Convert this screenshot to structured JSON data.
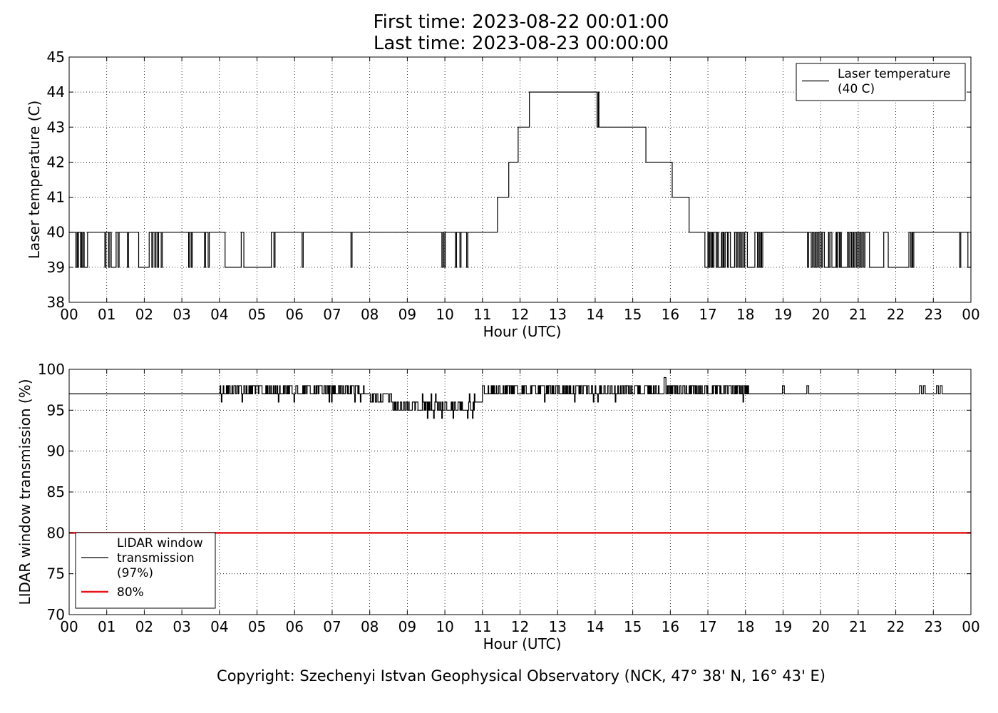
{
  "header": {
    "first_time": "First time: 2023-08-22 00:01:00",
    "last_time": "Last time: 2023-08-23 00:00:00"
  },
  "footer": {
    "copyright": "Copyright: Szechenyi Istvan Geophysical Observatory (NCK, 47° 38' N, 16° 43' E)"
  },
  "chart_data": [
    {
      "type": "line",
      "xlabel": "Hour (UTC)",
      "ylabel": "Laser temperature (C)",
      "xlim": [
        0,
        24
      ],
      "ylim": [
        38,
        45
      ],
      "xticks": [
        0,
        1,
        2,
        3,
        4,
        5,
        6,
        7,
        8,
        9,
        10,
        11,
        12,
        13,
        14,
        15,
        16,
        17,
        18,
        19,
        20,
        21,
        22,
        23,
        24
      ],
      "xtick_labels": [
        "00",
        "01",
        "02",
        "03",
        "04",
        "05",
        "06",
        "07",
        "08",
        "09",
        "10",
        "11",
        "12",
        "13",
        "14",
        "15",
        "16",
        "17",
        "18",
        "19",
        "20",
        "21",
        "22",
        "23",
        "00"
      ],
      "yticks": [
        38,
        39,
        40,
        41,
        42,
        43,
        44,
        45
      ],
      "grid": true,
      "legend_position": "top-right",
      "series": [
        {
          "name_lines": [
            "Laser temperature",
            "(40 C)"
          ],
          "color": "#000000",
          "base": 40,
          "steps": [
            [
              11.4,
              41
            ],
            [
              11.7,
              42
            ],
            [
              11.95,
              43
            ],
            [
              12.25,
              44
            ],
            [
              14.05,
              43
            ],
            [
              15.35,
              42
            ],
            [
              16.05,
              41
            ],
            [
              16.5,
              40
            ]
          ],
          "dips": [
            0.18,
            0.22,
            0.3,
            0.34,
            0.4,
            0.46,
            0.95,
            1.05,
            1.12,
            1.22,
            1.3,
            1.55,
            1.85,
            2.1,
            2.2,
            2.28,
            2.35,
            2.45,
            3.18,
            3.25,
            3.6,
            3.7,
            4.15,
            4.55,
            4.65,
            5.35,
            5.45,
            6.2,
            7.5,
            9.92,
            9.98,
            10.28,
            10.4,
            10.58,
            16.92,
            16.97,
            17.02,
            17.08,
            17.13,
            17.22,
            17.28,
            17.33,
            17.38,
            17.43,
            17.52,
            17.6,
            17.68,
            17.75,
            17.82,
            17.88,
            17.95,
            18.05,
            18.12,
            18.22,
            18.32,
            18.38,
            18.43,
            19.65,
            19.75,
            19.82,
            19.88,
            19.95,
            20.02,
            20.1,
            20.18,
            20.22,
            20.3,
            20.38,
            20.43,
            20.5,
            20.55,
            20.62,
            20.68,
            20.75,
            20.82,
            20.88,
            20.95,
            21.02,
            21.08,
            21.15,
            21.3,
            21.35,
            21.55,
            21.65,
            21.8,
            21.85,
            22.05,
            22.32,
            22.4,
            22.45,
            23.7,
            23.92
          ],
          "up_blips": [
            14.0,
            14.08
          ]
        }
      ]
    },
    {
      "type": "line",
      "xlabel": "Hour (UTC)",
      "ylabel": "LIDAR window transmission (%)",
      "xlim": [
        0,
        24
      ],
      "ylim": [
        70,
        100
      ],
      "xticks": [
        0,
        1,
        2,
        3,
        4,
        5,
        6,
        7,
        8,
        9,
        10,
        11,
        12,
        13,
        14,
        15,
        16,
        17,
        18,
        19,
        20,
        21,
        22,
        23,
        24
      ],
      "xtick_labels": [
        "00",
        "01",
        "02",
        "03",
        "04",
        "05",
        "06",
        "07",
        "08",
        "09",
        "10",
        "11",
        "12",
        "13",
        "14",
        "15",
        "16",
        "17",
        "18",
        "19",
        "20",
        "21",
        "22",
        "23",
        "00"
      ],
      "yticks": [
        70,
        75,
        80,
        85,
        90,
        95,
        100
      ],
      "grid": true,
      "legend_position": "bottom-left",
      "series": [
        {
          "name_lines": [
            "LIDAR window",
            "transmission",
            "(97%)"
          ],
          "color": "#000000",
          "base": 97
        },
        {
          "name_lines": [
            "80%"
          ],
          "color": "#e8141a",
          "constant": 80
        }
      ]
    }
  ]
}
